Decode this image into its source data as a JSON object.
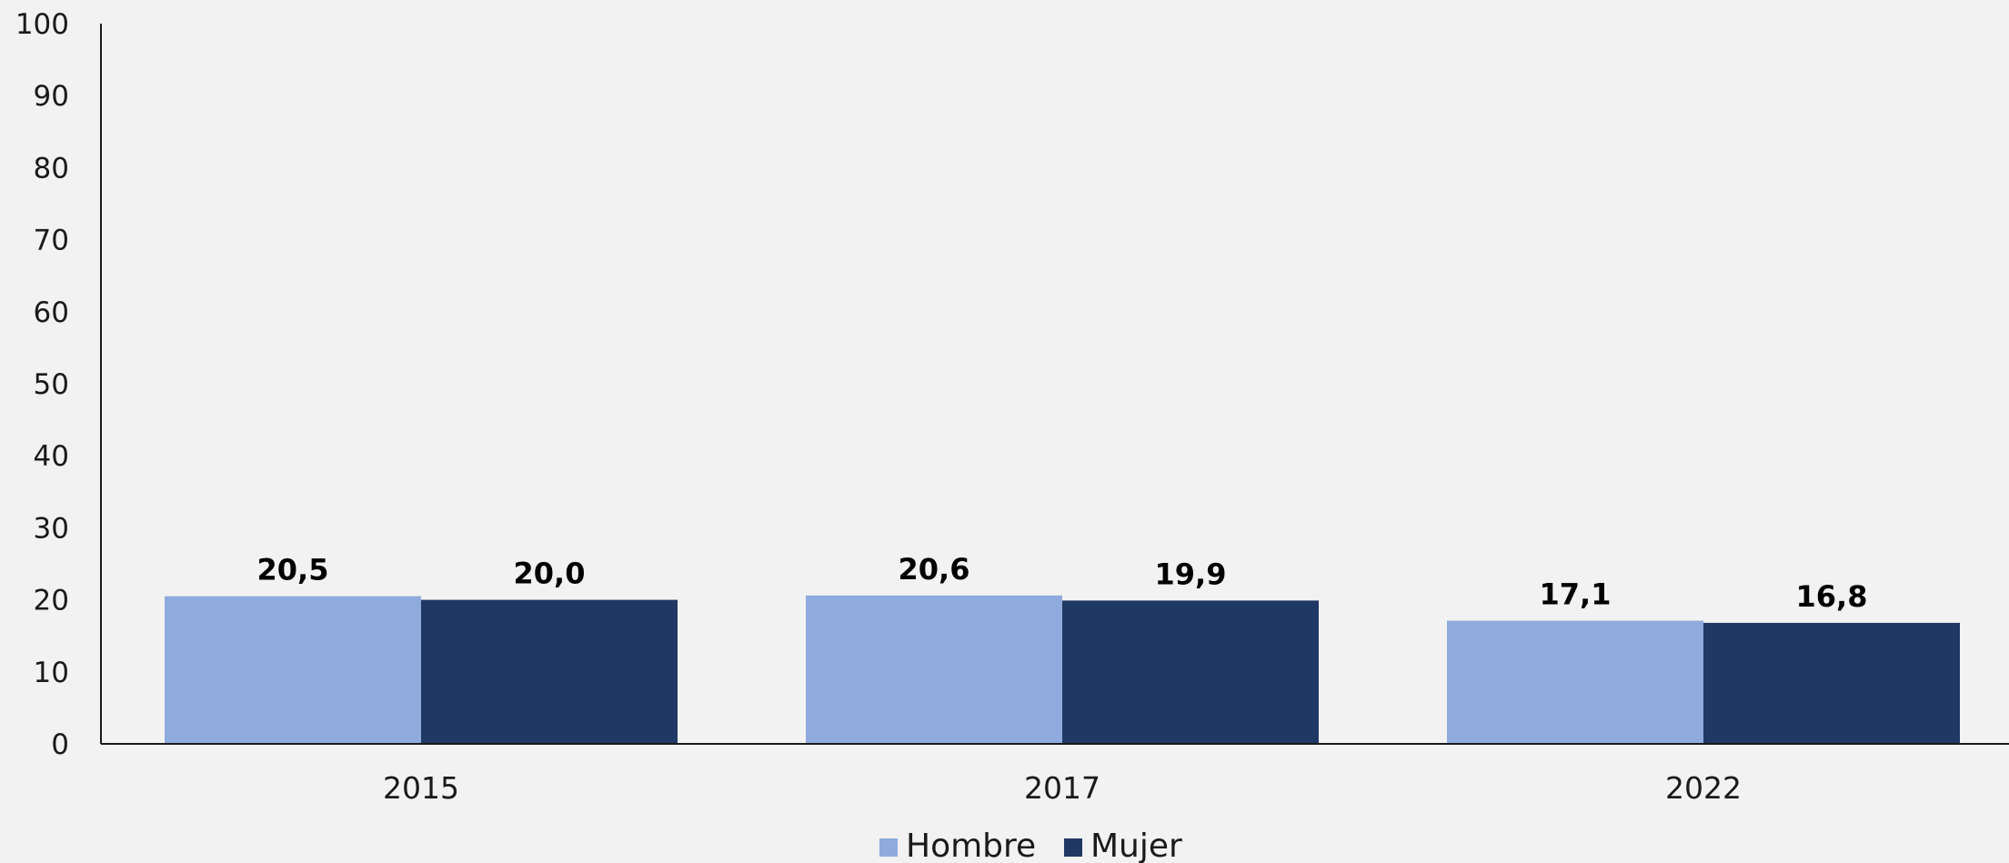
{
  "chart_data": {
    "type": "bar",
    "title": "",
    "xlabel": "",
    "ylabel": "",
    "categories": [
      "2015",
      "2017",
      "2022"
    ],
    "series": [
      {
        "name": "Hombre",
        "values": [
          20.5,
          20.6,
          17.1
        ],
        "labels": [
          "20,5",
          "20,6",
          "17,1"
        ],
        "color": "#8faadc"
      },
      {
        "name": "Mujer",
        "values": [
          20.0,
          19.9,
          16.8
        ],
        "labels": [
          "20,0",
          "19,9",
          "16,8"
        ],
        "color": "#203864"
      }
    ],
    "ylim": [
      0,
      100
    ],
    "yticks": [
      "0",
      "10",
      "20",
      "30",
      "40",
      "50",
      "60",
      "70",
      "80",
      "90",
      "100"
    ],
    "grid": false,
    "legend_position": "bottom-center",
    "axis_color": "#1a1a1a"
  }
}
